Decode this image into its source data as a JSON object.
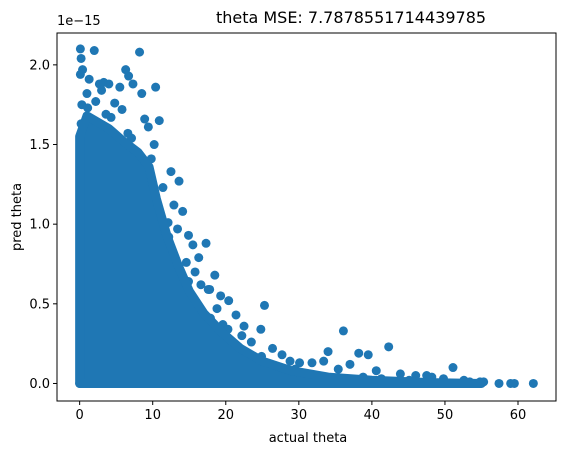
{
  "chart_data": {
    "type": "scatter",
    "title": "theta MSE: 7.7878551714439785",
    "xlabel": "actual theta",
    "ylabel": "pred theta",
    "y_offset_label": "1e−15",
    "xlim": [
      -3.1,
      65.2
    ],
    "ylim": [
      -1.1e-16,
      2.2e-15
    ],
    "xticks": [
      0,
      10,
      20,
      30,
      40,
      50,
      60
    ],
    "xtick_labels": [
      "0",
      "10",
      "20",
      "30",
      "40",
      "50",
      "60"
    ],
    "yticks": [
      0,
      5e-16,
      1e-15,
      1.5e-15,
      2e-15
    ],
    "ytick_labels": [
      "0.0",
      "0.5",
      "1.0",
      "1.5",
      "2.0"
    ],
    "grid": false,
    "legend": "none",
    "color": "#1f77b4",
    "series": [
      {
        "points": [
          [
            0.1,
            2.1e-15
          ],
          [
            2.0,
            2.09e-15
          ],
          [
            8.2,
            2.08e-15
          ],
          [
            0.2,
            2.04e-15
          ],
          [
            0.4,
            1.97e-15
          ],
          [
            6.3,
            1.97e-15
          ],
          [
            0.1,
            1.94e-15
          ],
          [
            1.3,
            1.91e-15
          ],
          [
            6.7,
            1.93e-15
          ],
          [
            2.7,
            1.88e-15
          ],
          [
            3.3,
            1.89e-15
          ],
          [
            4.0,
            1.88e-15
          ],
          [
            5.5,
            1.86e-15
          ],
          [
            7.3,
            1.88e-15
          ],
          [
            10.4,
            1.86e-15
          ],
          [
            1.0,
            1.82e-15
          ],
          [
            3.0,
            1.84e-15
          ],
          [
            8.5,
            1.82e-15
          ],
          [
            2.2,
            1.77e-15
          ],
          [
            4.8,
            1.76e-15
          ],
          [
            0.3,
            1.75e-15
          ],
          [
            1.1,
            1.73e-15
          ],
          [
            5.8,
            1.72e-15
          ],
          [
            3.6,
            1.69e-15
          ],
          [
            4.3,
            1.67e-15
          ],
          [
            8.9,
            1.66e-15
          ],
          [
            10.9,
            1.65e-15
          ],
          [
            1.6,
            1.65e-15
          ],
          [
            9.4,
            1.61e-15
          ],
          [
            0.2,
            1.63e-15
          ],
          [
            3.2,
            1.62e-15
          ],
          [
            2.3,
            1.58e-15
          ],
          [
            6.6,
            1.57e-15
          ],
          [
            7.1,
            1.54e-15
          ],
          [
            0.7,
            1.53e-15
          ],
          [
            10.2,
            1.5e-15
          ],
          [
            0.9,
            1.49e-15
          ],
          [
            5.0,
            1.47e-15
          ],
          [
            3.8,
            1.45e-15
          ],
          [
            8.0,
            1.44e-15
          ],
          [
            9.8,
            1.41e-15
          ],
          [
            12.5,
            1.33e-15
          ],
          [
            13.6,
            1.27e-15
          ],
          [
            11.4,
            1.23e-15
          ],
          [
            10.0,
            1.19e-15
          ],
          [
            12.9,
            1.12e-15
          ],
          [
            14.1,
            1.08e-15
          ],
          [
            11.0,
            1.06e-15
          ],
          [
            9.3,
            1.05e-15
          ],
          [
            12.1,
            1.01e-15
          ],
          [
            13.4,
            9.7e-16
          ],
          [
            14.9,
            9.3e-16
          ],
          [
            12.2,
            9.2e-16
          ],
          [
            17.3,
            8.8e-16
          ],
          [
            15.5,
            8.7e-16
          ],
          [
            16.3,
            7.9e-16
          ],
          [
            14.6,
            7.6e-16
          ],
          [
            15.8,
            7e-16
          ],
          [
            18.5,
            6.8e-16
          ],
          [
            14.9,
            6.4e-16
          ],
          [
            16.6,
            6.2e-16
          ],
          [
            17.8,
            5.9e-16
          ],
          [
            17.6,
            5.9e-16
          ],
          [
            19.3,
            5.5e-16
          ],
          [
            20.4,
            5.2e-16
          ],
          [
            18.8,
            4.7e-16
          ],
          [
            25.3,
            4.9e-16
          ],
          [
            21.4,
            4.3e-16
          ],
          [
            17.9,
            4.1e-16
          ],
          [
            19.6,
            3.7e-16
          ],
          [
            22.5,
            3.6e-16
          ],
          [
            24.8,
            3.4e-16
          ],
          [
            20.3,
            3.4e-16
          ],
          [
            36.1,
            3.3e-16
          ],
          [
            22.2,
            3e-16
          ],
          [
            21.0,
            2.5e-16
          ],
          [
            23.5,
            2.6e-16
          ],
          [
            26.4,
            2.2e-16
          ],
          [
            42.3,
            2.3e-16
          ],
          [
            19.0,
            2.1e-16
          ],
          [
            27.7,
            1.8e-16
          ],
          [
            24.9,
            1.7e-16
          ],
          [
            34.0,
            2e-16
          ],
          [
            38.2,
            1.9e-16
          ],
          [
            39.5,
            1.8e-16
          ],
          [
            28.8,
            1.4e-16
          ],
          [
            30.1,
            1.3e-16
          ],
          [
            31.8,
            1.3e-16
          ],
          [
            33.4,
            1.4e-16
          ],
          [
            37.0,
            1.2e-16
          ],
          [
            51.1,
            1e-16
          ],
          [
            35.4,
            9e-17
          ],
          [
            40.6,
            8e-17
          ],
          [
            29.5,
            9e-17
          ],
          [
            43.9,
            6e-17
          ],
          [
            46.0,
            5e-17
          ],
          [
            48.2,
            4e-17
          ],
          [
            47.5,
            5e-17
          ],
          [
            49.8,
            3e-17
          ],
          [
            52.6,
            2e-17
          ],
          [
            53.4,
            1e-17
          ],
          [
            54.8,
            1e-17
          ],
          [
            57.4,
            0.0
          ],
          [
            59.0,
            0.0
          ],
          [
            59.5,
            0.0
          ],
          [
            62.1,
            0.0
          ],
          [
            55.3,
            1e-17
          ],
          [
            45.1,
            2e-17
          ],
          [
            41.3,
            3e-17
          ],
          [
            38.8,
            4e-17
          ],
          [
            44.6,
            1e-17
          ],
          [
            50.4,
            0.0
          ],
          [
            53.9,
            0.0
          ],
          [
            32.5,
            5e-17
          ],
          [
            27.2,
            7e-17
          ]
        ]
      }
    ]
  }
}
